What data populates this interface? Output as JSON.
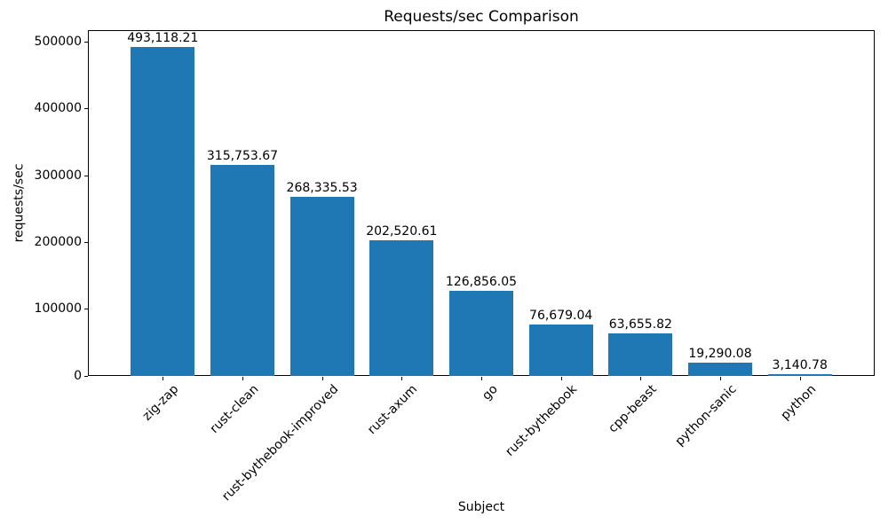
{
  "chart_data": {
    "type": "bar",
    "title": "Requests/sec Comparison",
    "xlabel": "Subject",
    "ylabel": "requests/sec",
    "categories": [
      "zig-zap",
      "rust-clean",
      "rust-bythebook-improved",
      "rust-axum",
      "go",
      "rust-bythebook",
      "cpp-beast",
      "python-sanic",
      "python"
    ],
    "values": [
      493118.21,
      315753.67,
      268335.53,
      202520.61,
      126856.05,
      76679.04,
      63655.82,
      19290.08,
      3140.78
    ],
    "value_labels": [
      "493,118.21",
      "315,753.67",
      "268,335.53",
      "202,520.61",
      "126,856.05",
      "76,679.04",
      "63,655.82",
      "19,290.08",
      "3,140.78"
    ],
    "y_ticks": [
      0,
      100000,
      200000,
      300000,
      400000,
      500000
    ],
    "y_tick_labels": [
      "0",
      "100000",
      "200000",
      "300000",
      "400000",
      "500000"
    ],
    "ylim": [
      0,
      517774
    ],
    "bar_color": "#1f77b4",
    "background_color": "#ffffff",
    "grid": false,
    "legend": "none",
    "x_label_rotation_deg": 45
  }
}
